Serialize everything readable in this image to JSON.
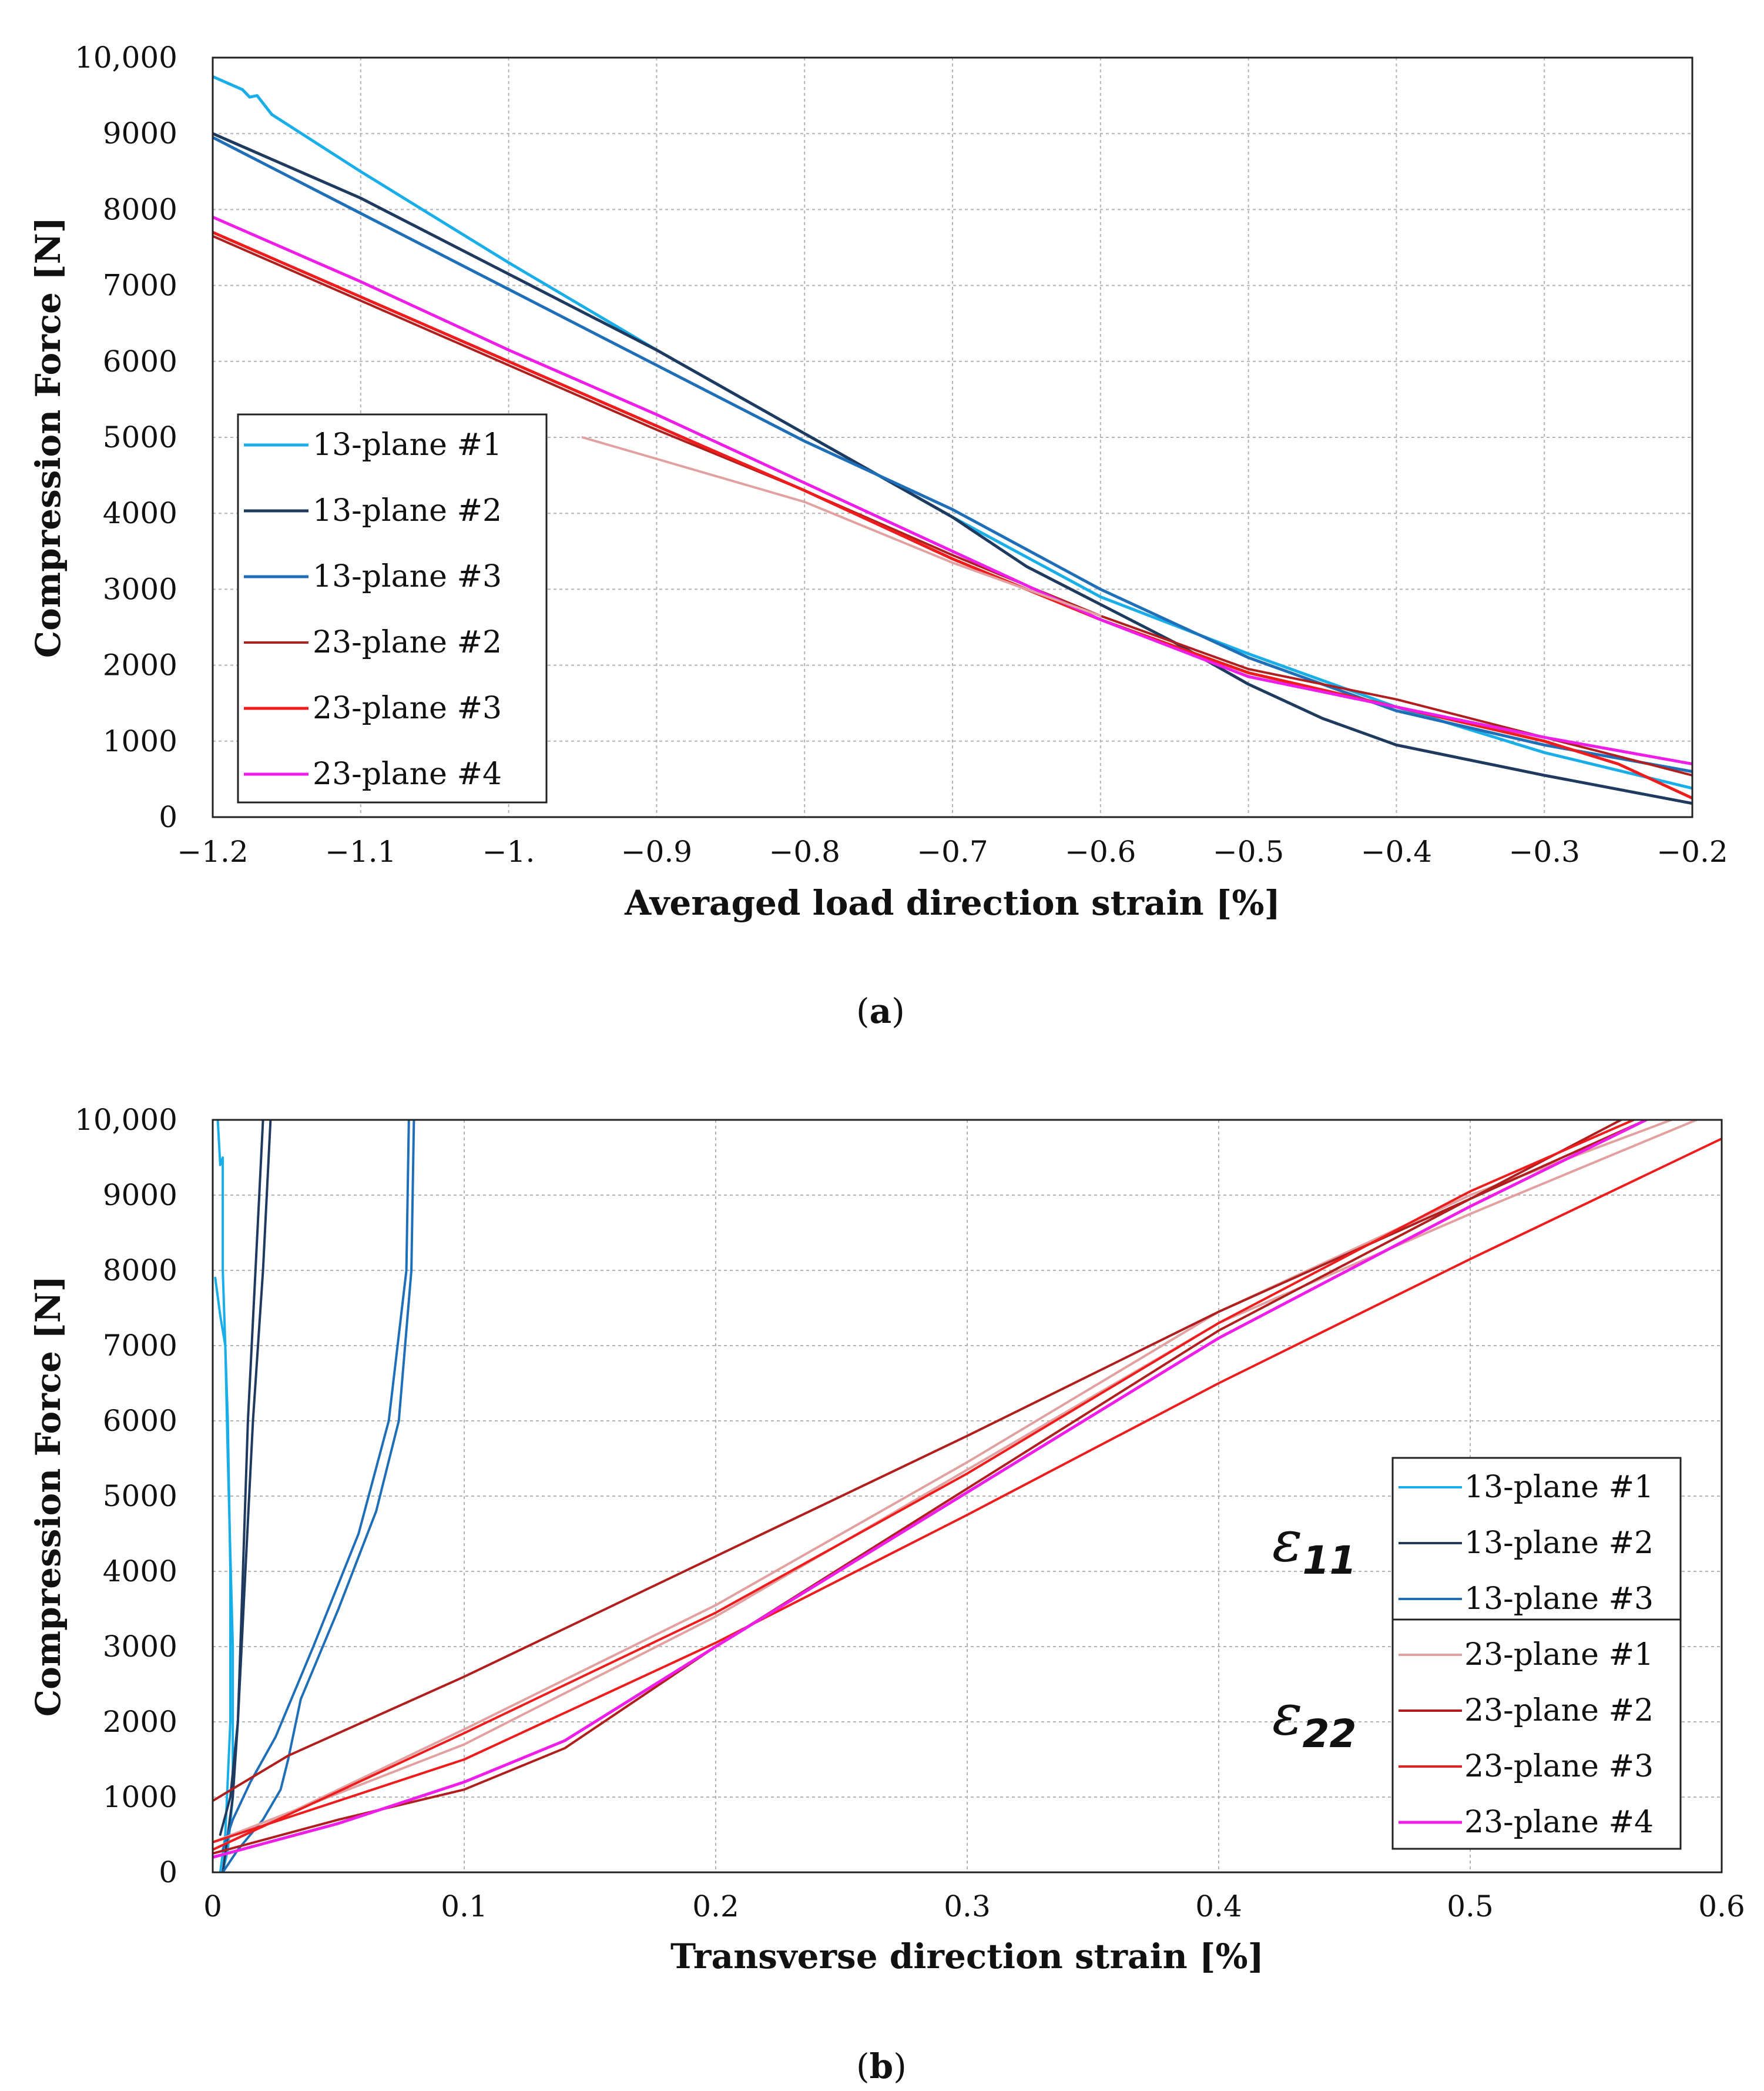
{
  "chart_data": [
    {
      "type": "line",
      "panel": "a",
      "caption": "(a)",
      "caption_letter": "a",
      "xlabel": "Averaged load direction strain [%]",
      "ylabel": "Compression Force [N]",
      "xlim": [
        -1.2,
        -0.2
      ],
      "ylim": [
        0,
        10000
      ],
      "x_tick_labels": [
        "−1.2",
        "−1.1",
        "−1.",
        "−0.9",
        "−0.8",
        "−0.7",
        "−0.6",
        "−0.5",
        "−0.4",
        "−0.3",
        "−0.2"
      ],
      "y_tick_labels": [
        "0",
        "1000",
        "2000",
        "3000",
        "4000",
        "5000",
        "6000",
        "7000",
        "8000",
        "9000",
        "10,000"
      ],
      "grid": true,
      "legend": "left",
      "series": [
        {
          "name": "13-plane #1",
          "color": "#1aaee8",
          "width": 5,
          "points": [
            [
              -1.2,
              9750
            ],
            [
              -1.18,
              9580
            ],
            [
              -1.175,
              9480
            ],
            [
              -1.17,
              9500
            ],
            [
              -1.16,
              9250
            ],
            [
              -1.14,
              9000
            ],
            [
              -1.1,
              8500
            ],
            [
              -1.0,
              7300
            ],
            [
              -0.9,
              6150
            ],
            [
              -0.8,
              5050
            ],
            [
              -0.7,
              3950
            ],
            [
              -0.6,
              2900
            ],
            [
              -0.5,
              2150
            ],
            [
              -0.4,
              1450
            ],
            [
              -0.3,
              850
            ],
            [
              -0.2,
              380
            ]
          ]
        },
        {
          "name": "13-plane #2",
          "color": "#1f3a5f",
          "width": 5,
          "points": [
            [
              -1.2,
              9000
            ],
            [
              -1.1,
              8150
            ],
            [
              -1.0,
              7150
            ],
            [
              -0.9,
              6150
            ],
            [
              -0.8,
              5050
            ],
            [
              -0.7,
              3950
            ],
            [
              -0.65,
              3300
            ],
            [
              -0.6,
              2800
            ],
            [
              -0.55,
              2300
            ],
            [
              -0.5,
              1750
            ],
            [
              -0.45,
              1300
            ],
            [
              -0.4,
              950
            ],
            [
              -0.3,
              550
            ],
            [
              -0.2,
              180
            ]
          ]
        },
        {
          "name": "13-plane #3",
          "color": "#1f6fb8",
          "width": 5,
          "points": [
            [
              -1.2,
              8950
            ],
            [
              -1.1,
              7950
            ],
            [
              -1.0,
              6950
            ],
            [
              -0.9,
              5950
            ],
            [
              -0.8,
              4950
            ],
            [
              -0.7,
              4050
            ],
            [
              -0.6,
              3000
            ],
            [
              -0.5,
              2100
            ],
            [
              -0.4,
              1400
            ],
            [
              -0.3,
              950
            ],
            [
              -0.2,
              600
            ]
          ]
        },
        {
          "name": "23-plane #2",
          "color": "#b01e1e",
          "width": 4,
          "points": [
            [
              -1.2,
              7650
            ],
            [
              -1.1,
              6800
            ],
            [
              -1.0,
              5950
            ],
            [
              -0.9,
              5100
            ],
            [
              -0.8,
              4300
            ],
            [
              -0.7,
              3450
            ],
            [
              -0.6,
              2650
            ],
            [
              -0.5,
              1950
            ],
            [
              -0.4,
              1550
            ],
            [
              -0.3,
              1050
            ],
            [
              -0.2,
              550
            ]
          ]
        },
        {
          "name": "23-plane #3",
          "color": "#ee1c1c",
          "width": 5,
          "points": [
            [
              -1.2,
              7700
            ],
            [
              -1.1,
              6850
            ],
            [
              -1.0,
              6000
            ],
            [
              -0.9,
              5150
            ],
            [
              -0.8,
              4300
            ],
            [
              -0.7,
              3400
            ],
            [
              -0.6,
              2600
            ],
            [
              -0.5,
              1900
            ],
            [
              -0.4,
              1450
            ],
            [
              -0.3,
              1000
            ],
            [
              -0.25,
              700
            ],
            [
              -0.2,
              250
            ]
          ]
        },
        {
          "name": "23-plane #4",
          "color": "#ee1ee8",
          "width": 5,
          "points": [
            [
              -1.2,
              7900
            ],
            [
              -1.1,
              7050
            ],
            [
              -1.0,
              6150
            ],
            [
              -0.9,
              5300
            ],
            [
              -0.8,
              4400
            ],
            [
              -0.7,
              3500
            ],
            [
              -0.6,
              2600
            ],
            [
              -0.5,
              1850
            ],
            [
              -0.4,
              1450
            ],
            [
              -0.3,
              1050
            ],
            [
              -0.2,
              700
            ]
          ]
        },
        {
          "name": "23-plane #1",
          "color": "#e2a0a0",
          "width": 4,
          "legend": false,
          "points": [
            [
              -0.95,
              5000
            ],
            [
              -0.8,
              4150
            ],
            [
              -0.7,
              3350
            ],
            [
              -0.6,
              2650
            ]
          ]
        }
      ]
    },
    {
      "type": "line",
      "panel": "b",
      "caption": "(b)",
      "caption_letter": "b",
      "xlabel": "Transverse direction strain [%]",
      "ylabel": "Compression Force [N]",
      "xlim": [
        0,
        0.6
      ],
      "ylim": [
        0,
        10000
      ],
      "x_tick_labels": [
        "0",
        "0.1",
        "0.2",
        "0.3",
        "0.4",
        "0.5",
        "0.6"
      ],
      "y_tick_labels": [
        "0",
        "1000",
        "2000",
        "3000",
        "4000",
        "5000",
        "6000",
        "7000",
        "8000",
        "9000",
        "10,000"
      ],
      "grid": true,
      "legend": "right",
      "group_labels": [
        {
          "symbol": "ε",
          "subscript": "11"
        },
        {
          "symbol": "ε",
          "subscript": "22"
        }
      ],
      "series": [
        {
          "name": "13-plane #1",
          "color": "#1aaee8",
          "width": 4,
          "curves": [
            [
              [
                0.001,
                7900
              ],
              [
                0.003,
                7400
              ],
              [
                0.005,
                7000
              ],
              [
                0.006,
                5500
              ],
              [
                0.008,
                3000
              ],
              [
                0.008,
                1000
              ],
              [
                0.006,
                300
              ],
              [
                0.004,
                0
              ]
            ],
            [
              [
                0.002,
                10000
              ],
              [
                0.003,
                9400
              ],
              [
                0.004,
                9500
              ],
              [
                0.004,
                8000
              ],
              [
                0.006,
                6000
              ],
              [
                0.007,
                4000
              ],
              [
                0.007,
                2000
              ],
              [
                0.005,
                500
              ],
              [
                0.003,
                0
              ]
            ]
          ]
        },
        {
          "name": "13-plane #2",
          "color": "#1f3a5f",
          "width": 4,
          "curves": [
            [
              [
                0.02,
                10000
              ],
              [
                0.017,
                8000
              ],
              [
                0.014,
                6000
              ],
              [
                0.012,
                4000
              ],
              [
                0.01,
                2000
              ],
              [
                0.008,
                1000
              ],
              [
                0.004,
                0
              ]
            ],
            [
              [
                0.023,
                10000
              ],
              [
                0.02,
                8000
              ],
              [
                0.016,
                6000
              ],
              [
                0.013,
                4000
              ],
              [
                0.01,
                2000
              ],
              [
                0.007,
                1000
              ],
              [
                0.003,
                500
              ]
            ]
          ]
        },
        {
          "name": "13-plane #3",
          "color": "#1f6fb8",
          "width": 4,
          "curves": [
            [
              [
                0.08,
                10000
              ],
              [
                0.079,
                8000
              ],
              [
                0.074,
                6000
              ],
              [
                0.065,
                4800
              ],
              [
                0.05,
                3500
              ],
              [
                0.035,
                2300
              ],
              [
                0.03,
                1500
              ],
              [
                0.027,
                1100
              ],
              [
                0.02,
                700
              ],
              [
                0.01,
                300
              ],
              [
                0.004,
                0
              ]
            ],
            [
              [
                0.078,
                10000
              ],
              [
                0.077,
                8000
              ],
              [
                0.07,
                6000
              ],
              [
                0.058,
                4500
              ],
              [
                0.04,
                3000
              ],
              [
                0.025,
                1800
              ],
              [
                0.015,
                1200
              ],
              [
                0.008,
                700
              ],
              [
                0.004,
                300
              ]
            ]
          ]
        },
        {
          "name": "23-plane #1",
          "color": "#e2a0a0",
          "width": 4,
          "curves": [
            [
              [
                0.0,
                400
              ],
              [
                0.1,
                1700
              ],
              [
                0.2,
                3400
              ],
              [
                0.3,
                5350
              ],
              [
                0.4,
                7300
              ],
              [
                0.5,
                8750
              ],
              [
                0.59,
                10000
              ]
            ],
            [
              [
                0.0,
                300
              ],
              [
                0.1,
                1900
              ],
              [
                0.2,
                3550
              ],
              [
                0.3,
                5450
              ],
              [
                0.4,
                7450
              ],
              [
                0.5,
                9000
              ],
              [
                0.58,
                10000
              ]
            ]
          ]
        },
        {
          "name": "23-plane #2",
          "color": "#b01e1e",
          "width": 4,
          "curves": [
            [
              [
                0.0,
                950
              ],
              [
                0.03,
                1550
              ],
              [
                0.1,
                2600
              ],
              [
                0.2,
                4200
              ],
              [
                0.3,
                5800
              ],
              [
                0.4,
                7450
              ],
              [
                0.5,
                8950
              ],
              [
                0.56,
                10000
              ]
            ],
            [
              [
                0.0,
                250
              ],
              [
                0.05,
                700
              ],
              [
                0.1,
                1100
              ],
              [
                0.14,
                1650
              ],
              [
                0.2,
                3000
              ],
              [
                0.3,
                5100
              ],
              [
                0.4,
                7200
              ],
              [
                0.5,
                8950
              ],
              [
                0.57,
                10000
              ]
            ]
          ]
        },
        {
          "name": "23-plane #3",
          "color": "#ee1c1c",
          "width": 4,
          "curves": [
            [
              [
                0.0,
                400
              ],
              [
                0.1,
                1500
              ],
              [
                0.2,
                3050
              ],
              [
                0.3,
                4750
              ],
              [
                0.4,
                6500
              ],
              [
                0.5,
                8150
              ],
              [
                0.6,
                9750
              ]
            ],
            [
              [
                0.0,
                300
              ],
              [
                0.1,
                1850
              ],
              [
                0.2,
                3450
              ],
              [
                0.3,
                5300
              ],
              [
                0.4,
                7300
              ],
              [
                0.5,
                9050
              ],
              [
                0.565,
                10000
              ]
            ]
          ]
        },
        {
          "name": "23-plane #4",
          "color": "#ee1ee8",
          "width": 5,
          "curves": [
            [
              [
                0.0,
                200
              ],
              [
                0.05,
                650
              ],
              [
                0.1,
                1200
              ],
              [
                0.14,
                1750
              ],
              [
                0.2,
                3000
              ],
              [
                0.3,
                5050
              ],
              [
                0.4,
                7100
              ],
              [
                0.5,
                8850
              ],
              [
                0.57,
                10000
              ]
            ]
          ]
        }
      ]
    }
  ]
}
